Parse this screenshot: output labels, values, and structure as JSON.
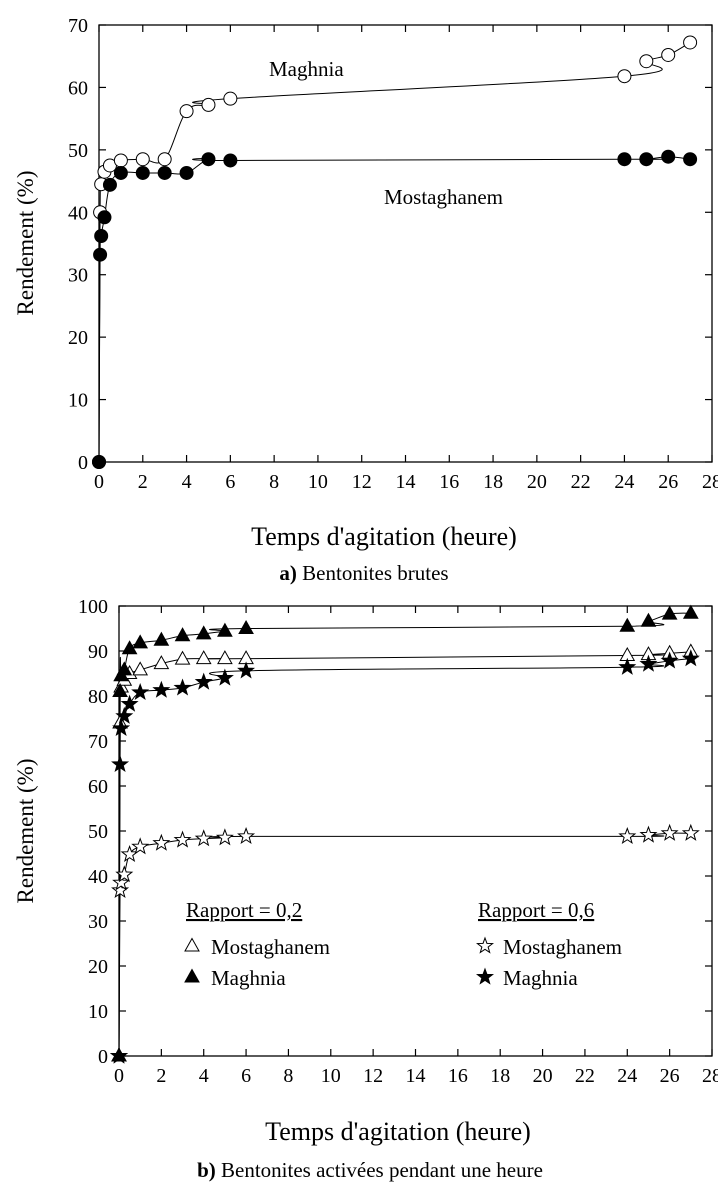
{
  "chart_data": [
    {
      "type": "scatter",
      "panel": "a",
      "caption_prefix": "a)",
      "caption_text": " Bentonites brutes",
      "xlabel": "Temps d'agitation (heure)",
      "ylabel": "Rendement (%)",
      "xlim": [
        0,
        28
      ],
      "ylim": [
        0,
        70
      ],
      "xticks": [
        0,
        2,
        4,
        6,
        8,
        10,
        12,
        14,
        16,
        18,
        20,
        22,
        24,
        26,
        28
      ],
      "yticks": [
        0,
        10,
        20,
        30,
        40,
        50,
        60,
        70
      ],
      "grid": false,
      "series": [
        {
          "name": "Maghnia",
          "marker": "circle-open",
          "x": [
            0,
            0.05,
            0.1,
            0.25,
            0.5,
            1,
            2,
            3,
            4,
            5,
            6,
            24,
            25,
            26,
            27
          ],
          "y": [
            0,
            40,
            44.5,
            46.5,
            47.5,
            48.3,
            48.5,
            48.5,
            56.2,
            57.2,
            58.2,
            61.8,
            64.2,
            65.2,
            67.2
          ]
        },
        {
          "name": "Mostaghanem",
          "marker": "circle-filled",
          "x": [
            0,
            0.05,
            0.1,
            0.25,
            0.5,
            1,
            2,
            3,
            4,
            5,
            6,
            24,
            25,
            26,
            27
          ],
          "y": [
            0,
            33.2,
            36.2,
            39.2,
            44.4,
            46.3,
            46.3,
            46.3,
            46.3,
            48.5,
            48.3,
            48.5,
            48.5,
            48.9,
            48.5
          ]
        }
      ],
      "annotations": [
        "Maghnia",
        "Mostaghanem"
      ]
    },
    {
      "type": "scatter",
      "panel": "b",
      "caption_prefix": "b)",
      "caption_text": " Bentonites activées pendant une heure",
      "xlabel": "Temps d'agitation (heure)",
      "ylabel": "Rendement (%)",
      "xlim": [
        0,
        28
      ],
      "ylim": [
        0,
        100
      ],
      "xticks": [
        0,
        2,
        4,
        6,
        8,
        10,
        12,
        14,
        16,
        18,
        20,
        22,
        24,
        26,
        28
      ],
      "yticks": [
        0,
        10,
        20,
        30,
        40,
        50,
        60,
        70,
        80,
        90,
        100
      ],
      "grid": false,
      "legend": {
        "placement": "lower-center",
        "groups": [
          {
            "title": "Rapport = 0,2",
            "entries": [
              "Mostaghanem",
              "Maghnia"
            ]
          },
          {
            "title": "Rapport = 0,6",
            "entries": [
              "Mostaghanem",
              "Maghnia"
            ]
          }
        ]
      },
      "series": [
        {
          "name": "Mostaghanem",
          "group": "Rapport = 0,2",
          "marker": "triangle-open",
          "x": [
            0,
            0.05,
            0.1,
            0.25,
            0.5,
            1,
            2,
            3,
            4,
            5,
            6,
            24,
            25,
            26,
            27
          ],
          "y": [
            0,
            74,
            82,
            83.5,
            85,
            85.8,
            87.2,
            88.2,
            88.3,
            88.3,
            88.3,
            89,
            89.2,
            89.5,
            89.8
          ]
        },
        {
          "name": "Maghnia",
          "group": "Rapport = 0,2",
          "marker": "triangle-filled",
          "x": [
            0,
            0.05,
            0.1,
            0.25,
            0.5,
            1,
            2,
            3,
            4,
            5,
            6,
            24,
            25,
            26,
            27
          ],
          "y": [
            0,
            81,
            84.5,
            85.8,
            90.5,
            91.8,
            92.4,
            93.4,
            93.8,
            94.4,
            95,
            95.5,
            96.6,
            98.2,
            98.4
          ]
        },
        {
          "name": "Mostaghanem",
          "group": "Rapport = 0,6",
          "marker": "star-open",
          "x": [
            0,
            0.05,
            0.1,
            0.25,
            0.5,
            1,
            2,
            3,
            4,
            5,
            6,
            24,
            25,
            26,
            27
          ],
          "y": [
            0,
            36.8,
            38.5,
            40.3,
            44.8,
            46.5,
            47.3,
            48,
            48.3,
            48.5,
            48.8,
            48.8,
            49.1,
            49.5,
            49.5
          ]
        },
        {
          "name": "Maghnia",
          "group": "Rapport = 0,6",
          "marker": "star-filled",
          "x": [
            0,
            0.05,
            0.1,
            0.25,
            0.5,
            1,
            2,
            3,
            4,
            5,
            6,
            24,
            25,
            26,
            27
          ],
          "y": [
            0,
            64.8,
            72.8,
            75.5,
            78.2,
            80.8,
            81.3,
            81.8,
            83.1,
            84,
            85.6,
            86.4,
            87.1,
            87.8,
            88.3
          ]
        }
      ],
      "annotations": []
    }
  ]
}
